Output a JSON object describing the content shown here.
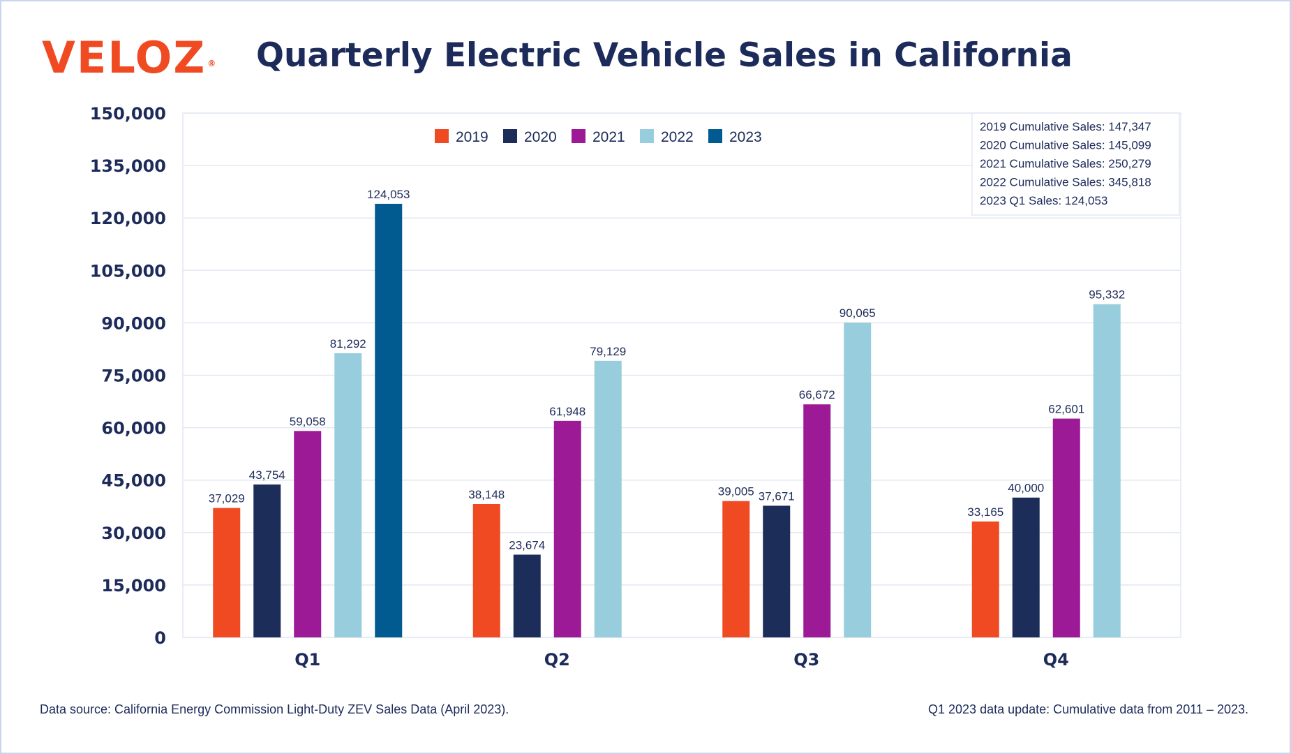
{
  "header": {
    "logo_text": "VELOZ",
    "logo_mark": "®",
    "title": "Quarterly Electric Vehicle Sales in California"
  },
  "colors": {
    "2019": "#f04a23",
    "2020": "#1d2d5a",
    "2021": "#9c1a95",
    "2022": "#97cddc",
    "2023": "#025b90",
    "axis_text": "#1d2b5a",
    "grid": "#e3e7f3"
  },
  "chart_data": {
    "type": "bar",
    "title": "Quarterly Electric Vehicle Sales in California",
    "categories": [
      "Q1",
      "Q2",
      "Q3",
      "Q4"
    ],
    "series": [
      {
        "name": "2019",
        "values": [
          37029,
          38148,
          39005,
          33165
        ],
        "labels": [
          "37,029",
          "38,148",
          "39,005",
          "33,165"
        ]
      },
      {
        "name": "2020",
        "values": [
          43754,
          23674,
          37671,
          40000
        ],
        "labels": [
          "43,754",
          "23,674",
          "37,671",
          "40,000"
        ]
      },
      {
        "name": "2021",
        "values": [
          59058,
          61948,
          66672,
          62601
        ],
        "labels": [
          "59,058",
          "61,948",
          "66,672",
          "62,601"
        ]
      },
      {
        "name": "2022",
        "values": [
          81292,
          79129,
          90065,
          95332
        ],
        "labels": [
          "81,292",
          "79,129",
          "90,065",
          "95,332"
        ]
      },
      {
        "name": "2023",
        "values": [
          124053,
          null,
          null,
          null
        ],
        "labels": [
          "124,053",
          null,
          null,
          null
        ]
      }
    ],
    "ylim": [
      0,
      150000
    ],
    "yticks": [
      0,
      15000,
      30000,
      45000,
      60000,
      75000,
      90000,
      105000,
      120000,
      135000,
      150000
    ],
    "ytick_labels": [
      "0",
      "15,000",
      "30,000",
      "45,000",
      "60,000",
      "75,000",
      "90,000",
      "105,000",
      "120,000",
      "135,000",
      "150,000"
    ],
    "grid": true,
    "legend_position": "top-center",
    "xlabel": "",
    "ylabel": "",
    "annotation_box": [
      "2019 Cumulative Sales: 147,347",
      "2020 Cumulative Sales: 145,099",
      "2021 Cumulative Sales: 250,279",
      "2022 Cumulative Sales: 345,818",
      "2023 Q1 Sales: 124,053"
    ]
  },
  "footer": {
    "source": "Data source: California Energy Commission Light-Duty ZEV Sales Data (April 2023).",
    "note": "Q1 2023 data update: Cumulative data from 2011 – 2023."
  }
}
